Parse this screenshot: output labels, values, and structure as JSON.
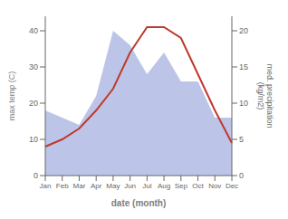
{
  "chart_data": {
    "type": "line",
    "xlabel": "date (month)",
    "ylabel": "max temp (C)",
    "y2label": "med. precipitation\n(kg/m2)",
    "categories": [
      "Jan",
      "Feb",
      "Mar",
      "Apr",
      "May",
      "Jun",
      "Jul",
      "Aug",
      "Sep",
      "Oct",
      "Nov",
      "Dec"
    ],
    "series": [
      {
        "type": "area",
        "axis": "y2",
        "color": "#bcc5e8",
        "values": [
          9,
          8,
          7,
          11,
          20,
          18,
          14,
          17,
          13,
          13,
          8,
          8
        ]
      },
      {
        "type": "line",
        "color": "#c0392b",
        "values": [
          8,
          10,
          13,
          18,
          24,
          34,
          41,
          41,
          38,
          28,
          18,
          9
        ]
      }
    ],
    "ylim": [
      0,
      44
    ],
    "yticks": [
      0,
      10,
      20,
      30,
      40
    ],
    "y2lim": [
      0,
      22
    ],
    "y2ticks": [
      0,
      5,
      10,
      15,
      20
    ],
    "grid": false
  }
}
